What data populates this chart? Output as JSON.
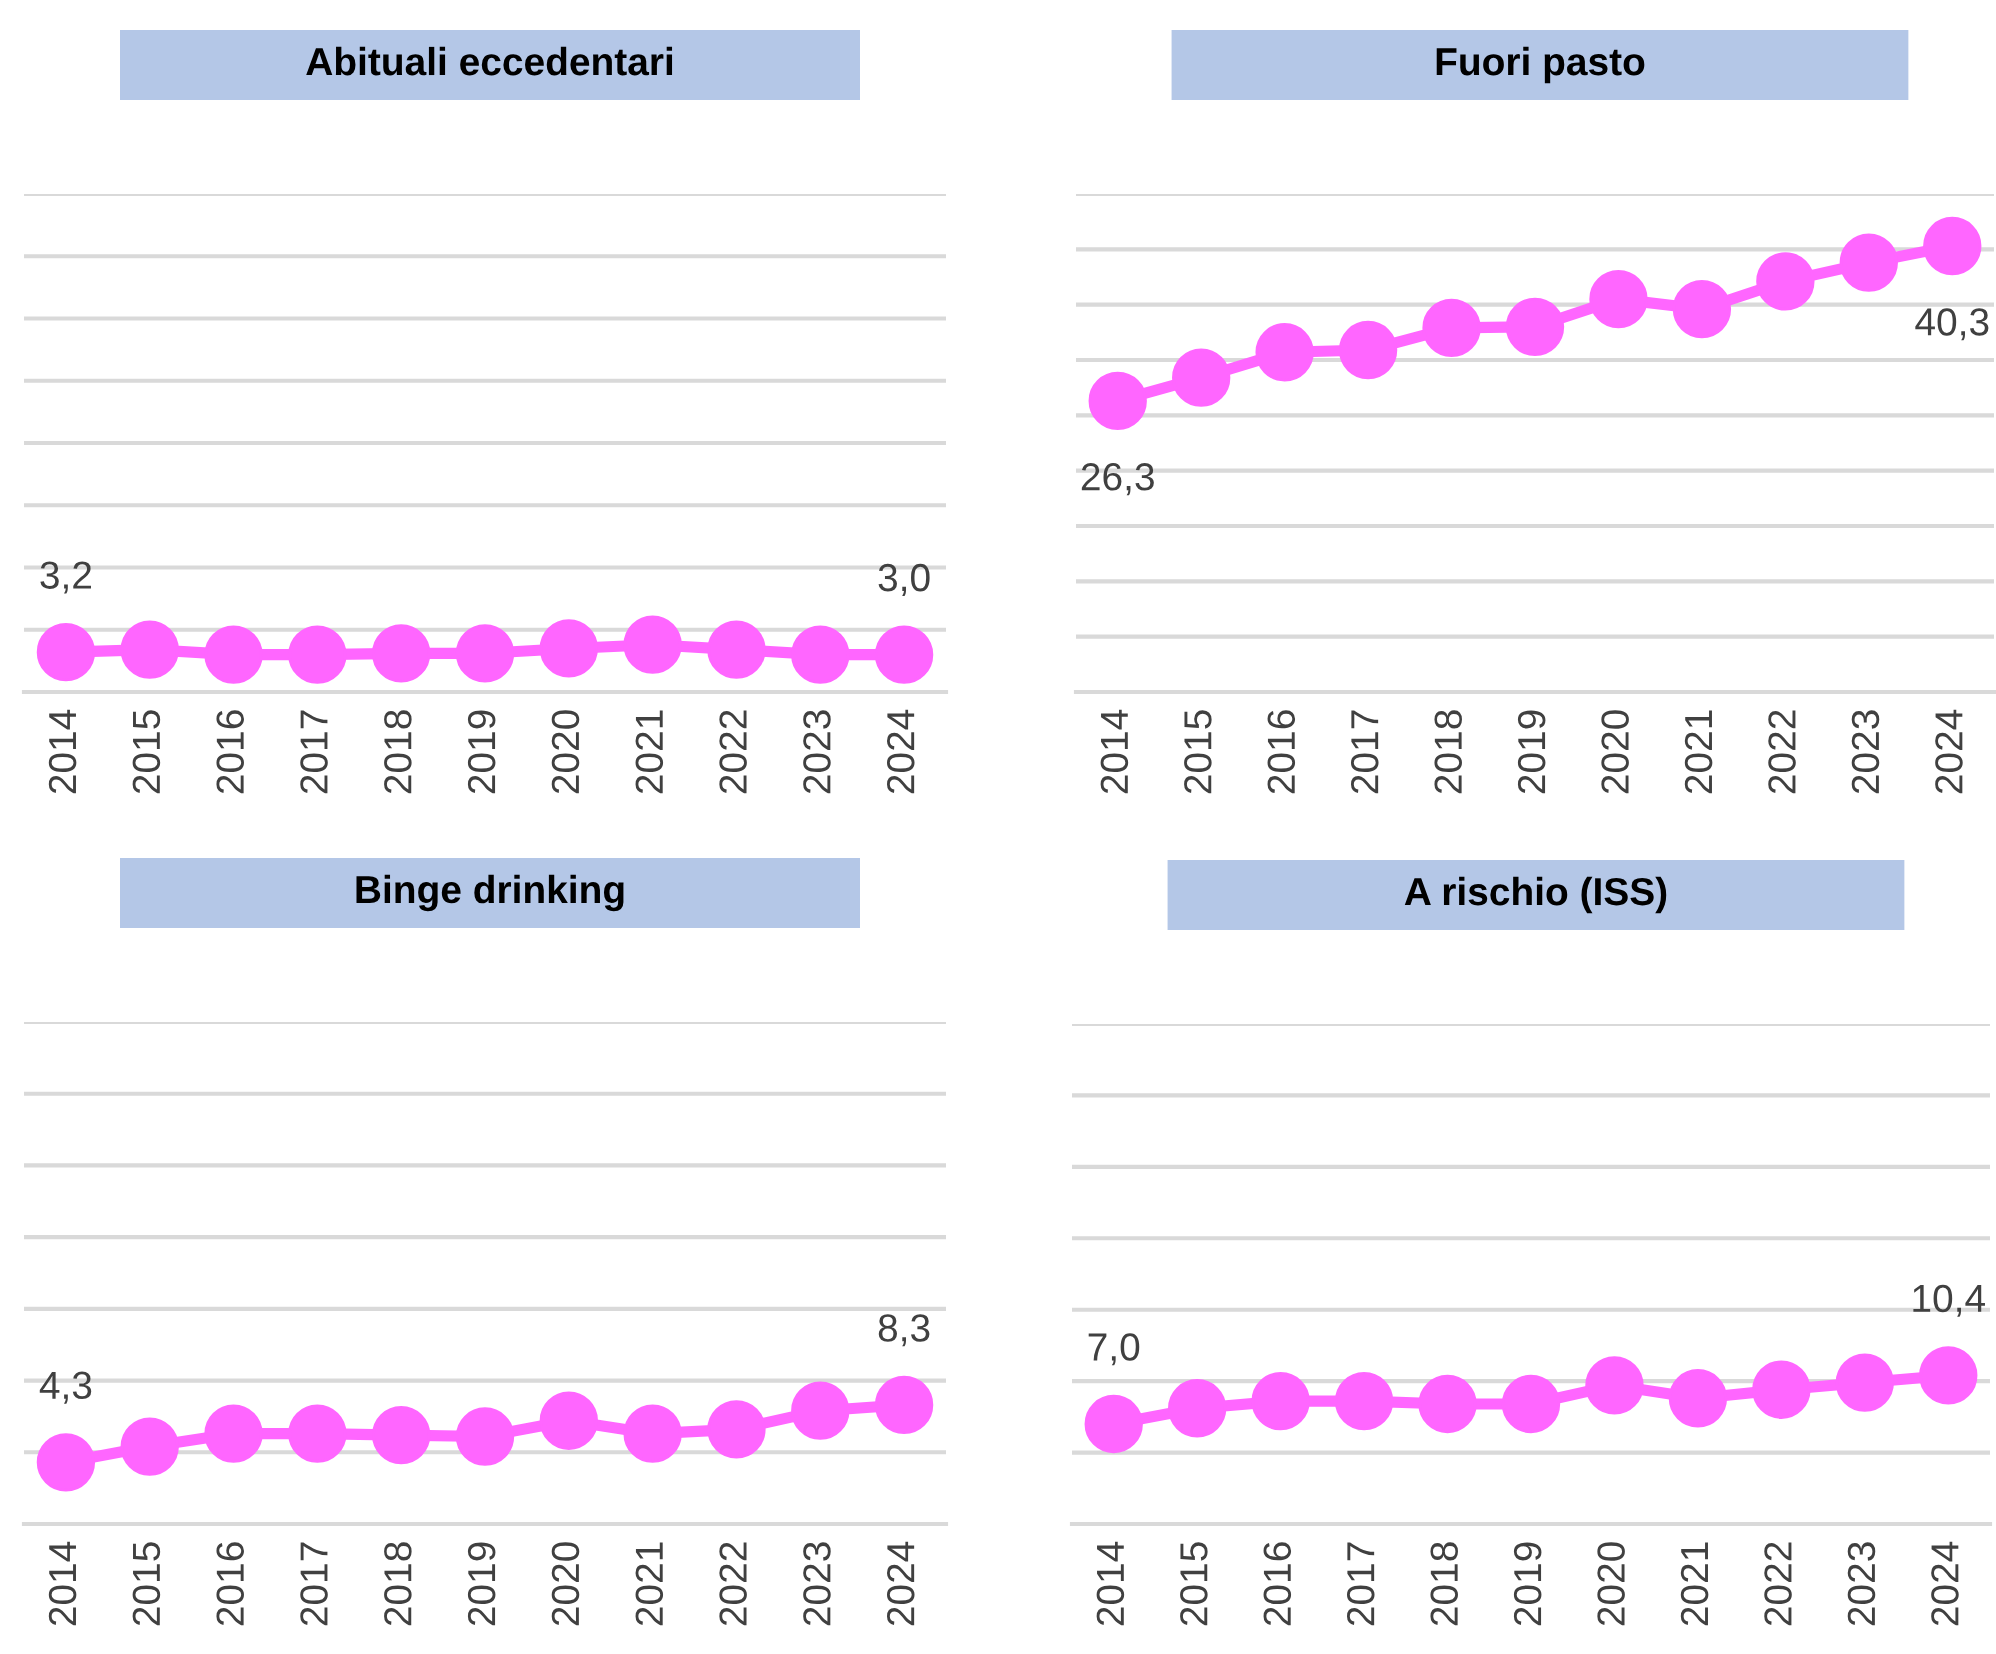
{
  "chart_data": [
    {
      "type": "line",
      "title": "Abituali eccedentari",
      "categories": [
        "2014",
        "2015",
        "2016",
        "2017",
        "2018",
        "2019",
        "2020",
        "2021",
        "2022",
        "2023",
        "2024"
      ],
      "series": [
        {
          "color": "#ff66ff",
          "values": [
            3.2,
            3.4,
            3.0,
            3.0,
            3.1,
            3.1,
            3.5,
            3.8,
            3.4,
            3.0,
            3.0
          ],
          "value_labels": [
            "3,2",
            null,
            null,
            null,
            null,
            null,
            null,
            null,
            null,
            null,
            "3,0"
          ]
        }
      ],
      "ylim": [
        0,
        40
      ],
      "yticks": [
        {
          "value": 0,
          "label": null
        },
        {
          "value": 5,
          "label": null
        },
        {
          "value": 10,
          "label": null
        },
        {
          "value": 15,
          "label": null
        },
        {
          "value": 20,
          "label": null
        },
        {
          "value": 25,
          "label": null
        },
        {
          "value": 30,
          "label": null
        },
        {
          "value": 35,
          "label": null
        },
        {
          "value": 40,
          "label": null
        }
      ],
      "grid": "y",
      "marker": "circle",
      "line_style": "solid",
      "tick_labels": "x"
    },
    {
      "type": "line",
      "title": "Fuori pasto",
      "categories": [
        "2014",
        "2015",
        "2016",
        "2017",
        "2018",
        "2019",
        "2020",
        "2021",
        "2022",
        "2023",
        "2024"
      ],
      "series": [
        {
          "color": "#ff66ff",
          "values": [
            26.3,
            28.4,
            30.7,
            30.9,
            32.9,
            33.0,
            35.5,
            34.6,
            37.1,
            38.8,
            40.3
          ],
          "value_labels": [
            "26,3",
            null,
            null,
            null,
            null,
            null,
            null,
            null,
            null,
            null,
            "40,3"
          ]
        }
      ],
      "ylim": [
        0,
        45
      ],
      "yticks": [
        {
          "value": 0,
          "label": null
        },
        {
          "value": 5,
          "label": null
        },
        {
          "value": 10,
          "label": null
        },
        {
          "value": 15,
          "label": null
        },
        {
          "value": 20,
          "label": null
        },
        {
          "value": 25,
          "label": null
        },
        {
          "value": 30,
          "label": null
        },
        {
          "value": 35,
          "label": null
        },
        {
          "value": 40,
          "label": null
        },
        {
          "value": 45,
          "label": null
        }
      ],
      "grid": "y",
      "marker": "circle",
      "line_style": "solid",
      "tick_labels": "x"
    },
    {
      "type": "line",
      "title": "Binge drinking",
      "categories": [
        "2014",
        "2015",
        "2016",
        "2017",
        "2018",
        "2019",
        "2020",
        "2021",
        "2022",
        "2023",
        "2024"
      ],
      "series": [
        {
          "color": "#ff66ff",
          "values": [
            4.3,
            5.4,
            6.3,
            6.3,
            6.2,
            6.1,
            7.2,
            6.3,
            6.6,
            7.9,
            8.3
          ],
          "value_labels": [
            "4,3",
            null,
            null,
            null,
            null,
            null,
            null,
            null,
            null,
            null,
            "8,3"
          ]
        }
      ],
      "ylim": [
        0,
        35
      ],
      "yticks": [
        {
          "value": 0,
          "label": null
        },
        {
          "value": 5,
          "label": null
        },
        {
          "value": 10,
          "label": null
        },
        {
          "value": 15,
          "label": null
        },
        {
          "value": 20,
          "label": null
        },
        {
          "value": 25,
          "label": null
        },
        {
          "value": 30,
          "label": null
        },
        {
          "value": 35,
          "label": null
        }
      ],
      "grid": "y",
      "marker": "circle",
      "line_style": "solid",
      "tick_labels": "x"
    },
    {
      "type": "line",
      "title": "A rischio (ISS)",
      "categories": [
        "2014",
        "2015",
        "2016",
        "2017",
        "2018",
        "2019",
        "2020",
        "2021",
        "2022",
        "2023",
        "2024"
      ],
      "series": [
        {
          "color": "#ff66ff",
          "values": [
            7.0,
            8.1,
            8.6,
            8.6,
            8.4,
            8.4,
            9.7,
            8.8,
            9.4,
            9.9,
            10.4
          ],
          "value_labels": [
            "7,0",
            null,
            null,
            null,
            null,
            null,
            null,
            null,
            null,
            null,
            "10,4"
          ]
        }
      ],
      "ylim": [
        0,
        35
      ],
      "yticks": [
        {
          "value": 0,
          "label": null
        },
        {
          "value": 5,
          "label": null
        },
        {
          "value": 10,
          "label": null
        },
        {
          "value": 15,
          "label": null
        },
        {
          "value": 20,
          "label": null
        },
        {
          "value": 25,
          "label": null
        },
        {
          "value": 30,
          "label": null
        },
        {
          "value": 35,
          "label": null
        }
      ],
      "grid": "y",
      "marker": "circle",
      "line_style": "solid",
      "tick_labels": "x"
    }
  ]
}
